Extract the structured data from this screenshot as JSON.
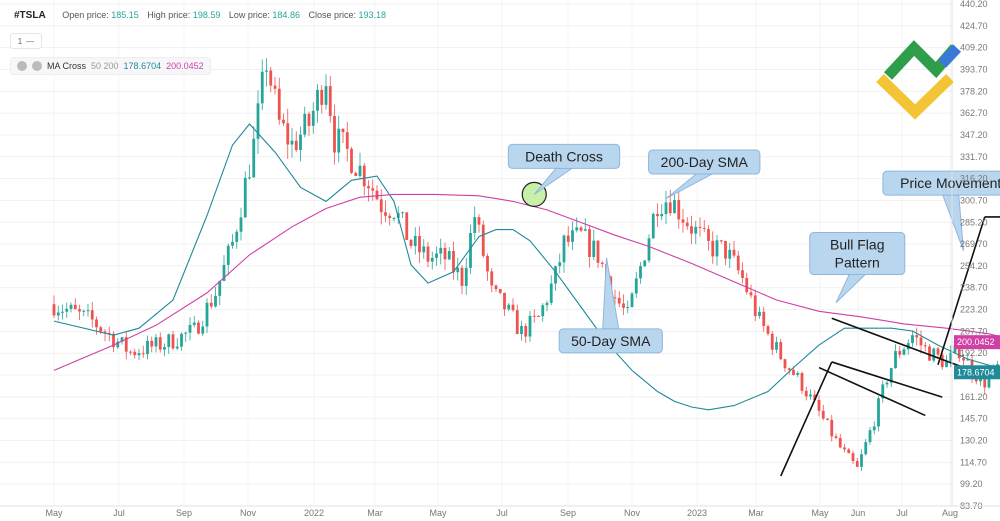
{
  "header": {
    "symbol": "#TSLA",
    "open_label": "Open price:",
    "open_value": "185.15",
    "high_label": "High price:",
    "high_value": "198.59",
    "low_label": "Low price:",
    "low_value": "184.86",
    "close_label": "Close price:",
    "close_value": "193.18"
  },
  "interval_box": {
    "value": "1",
    "dash": "—"
  },
  "indicator": {
    "name": "MA Cross",
    "periods": "50 200",
    "fast_value": "178.6704",
    "slow_value": "200.0452"
  },
  "colors": {
    "fast_ma": "#1f8a99",
    "slow_ma": "#d03fa5",
    "up": "#26a69a",
    "down": "#ef5350",
    "callout_fill": "#b9d6ef",
    "callout_border": "#8fb6dd"
  },
  "chart_data": {
    "type": "candlestick",
    "x_ticks": [
      "May",
      "Jul",
      "Sep",
      "Nov",
      "2022",
      "Mar",
      "May",
      "Jul",
      "Sep",
      "Nov",
      "2023",
      "Mar",
      "May",
      "Jun",
      "Jul",
      "Aug"
    ],
    "y_ticks": [
      440.2,
      424.7,
      409.2,
      393.7,
      378.2,
      362.7,
      347.2,
      331.7,
      316.2,
      300.7,
      285.2,
      269.7,
      254.2,
      238.7,
      223.2,
      207.7,
      192.2,
      176.7,
      161.2,
      145.7,
      130.2,
      114.7,
      99.2,
      83.7
    ],
    "y_tick_labels": [
      "440.20",
      "424.70",
      "409.20",
      "393.70",
      "378.20",
      "362.70",
      "347.20",
      "331.70",
      "316.20",
      "300.70",
      "285.20",
      "269.70",
      "254.20",
      "238.70",
      "223.20",
      "207.70",
      "192.20",
      "176.70",
      "161.20",
      "145.70",
      "130.20",
      "114.70",
      "99.20",
      "83.70"
    ],
    "ylim": [
      83.7,
      440.2
    ],
    "price_path": [
      [
        0,
        227
      ],
      [
        9,
        215
      ],
      [
        18,
        193
      ],
      [
        26,
        199
      ],
      [
        33,
        208
      ],
      [
        38,
        235
      ],
      [
        42,
        270
      ],
      [
        47,
        340
      ],
      [
        50,
        400
      ],
      [
        53,
        355
      ],
      [
        56,
        340
      ],
      [
        60,
        355
      ],
      [
        64,
        390
      ],
      [
        66,
        345
      ],
      [
        69,
        335
      ],
      [
        74,
        315
      ],
      [
        77,
        298
      ],
      [
        80,
        295
      ],
      [
        84,
        270
      ],
      [
        88,
        260
      ],
      [
        92,
        260
      ],
      [
        96,
        245
      ],
      [
        99,
        290
      ],
      [
        103,
        235
      ],
      [
        106,
        225
      ],
      [
        110,
        207
      ],
      [
        114,
        217
      ],
      [
        118,
        247
      ],
      [
        120,
        270
      ],
      [
        124,
        275
      ],
      [
        128,
        262
      ],
      [
        132,
        232
      ],
      [
        135,
        218
      ],
      [
        139,
        265
      ],
      [
        142,
        300
      ],
      [
        145,
        302
      ],
      [
        150,
        282
      ],
      [
        154,
        268
      ],
      [
        158,
        265
      ],
      [
        162,
        245
      ],
      [
        166,
        215
      ],
      [
        171,
        190
      ],
      [
        176,
        170
      ],
      [
        180,
        150
      ],
      [
        185,
        125
      ],
      [
        189,
        110
      ],
      [
        193,
        145
      ],
      [
        196,
        175
      ],
      [
        198,
        190
      ],
      [
        202,
        205
      ],
      [
        205,
        195
      ],
      [
        210,
        185
      ],
      [
        213,
        195
      ],
      [
        216,
        180
      ],
      [
        219,
        172
      ],
      [
        222,
        182
      ],
      [
        226,
        175
      ],
      [
        228,
        193
      ]
    ],
    "series": [
      {
        "name": "50-Day SMA",
        "values": [
          [
            0,
            215
          ],
          [
            14,
            205
          ],
          [
            20,
            210
          ],
          [
            28,
            230
          ],
          [
            36,
            290
          ],
          [
            42,
            340
          ],
          [
            46,
            355
          ],
          [
            52,
            335
          ],
          [
            58,
            310
          ],
          [
            64,
            300
          ],
          [
            70,
            315
          ],
          [
            76,
            318
          ],
          [
            80,
            300
          ],
          [
            84,
            255
          ],
          [
            88,
            242
          ],
          [
            94,
            250
          ],
          [
            100,
            275
          ],
          [
            104,
            280
          ],
          [
            108,
            280
          ],
          [
            112,
            272
          ],
          [
            118,
            250
          ],
          [
            124,
            225
          ],
          [
            130,
            200
          ],
          [
            136,
            180
          ],
          [
            142,
            165
          ],
          [
            146,
            158
          ],
          [
            150,
            154
          ],
          [
            154,
            152
          ],
          [
            160,
            155
          ],
          [
            168,
            165
          ],
          [
            174,
            182
          ],
          [
            180,
            198
          ],
          [
            186,
            210
          ],
          [
            192,
            210
          ],
          [
            197,
            210
          ],
          [
            202,
            208
          ],
          [
            208,
            198
          ],
          [
            215,
            188
          ],
          [
            222,
            182
          ],
          [
            228,
            178.67
          ]
        ]
      },
      {
        "name": "200-Day SMA",
        "values": [
          [
            0,
            180
          ],
          [
            14,
            198
          ],
          [
            24,
            212
          ],
          [
            36,
            235
          ],
          [
            46,
            262
          ],
          [
            56,
            282
          ],
          [
            64,
            295
          ],
          [
            72,
            303
          ],
          [
            80,
            305
          ],
          [
            90,
            305
          ],
          [
            100,
            304
          ],
          [
            108,
            300
          ],
          [
            116,
            294
          ],
          [
            124,
            285
          ],
          [
            132,
            276
          ],
          [
            140,
            268
          ],
          [
            150,
            256
          ],
          [
            160,
            243
          ],
          [
            170,
            230
          ],
          [
            180,
            222
          ],
          [
            190,
            218
          ],
          [
            200,
            213
          ],
          [
            210,
            210
          ],
          [
            220,
            206
          ],
          [
            228,
            200.05
          ]
        ]
      }
    ],
    "annotations": [
      {
        "text": "Death Cross",
        "anchor": [
          113,
          305
        ],
        "label_pos": [
          120,
          332
        ]
      },
      {
        "text": "200-Day SMA",
        "anchor": [
          144,
          302
        ],
        "label_pos": [
          153,
          328
        ]
      },
      {
        "text": "50-Day SMA",
        "anchor": [
          130,
          260
        ],
        "label_pos": [
          131,
          201
        ]
      },
      {
        "text": "Bull Flag Pattern",
        "anchor": [
          184,
          228
        ],
        "label_pos": [
          189,
          263
        ]
      },
      {
        "text": "Price Movement",
        "anchor": [
          214,
          265
        ],
        "label_pos": [
          211,
          313
        ]
      }
    ],
    "pattern_lines": [
      [
        [
          171,
          105
        ],
        [
          183,
          186
        ]
      ],
      [
        [
          183,
          186
        ],
        [
          209,
          161
        ]
      ],
      [
        [
          180,
          182
        ],
        [
          205,
          148
        ]
      ],
      [
        [
          183,
          217
        ],
        [
          215,
          181
        ]
      ],
      [
        [
          208,
          184
        ],
        [
          219,
          289
        ]
      ],
      [
        [
          219,
          289
        ],
        [
          238,
          289
        ]
      ]
    ],
    "price_tags": [
      {
        "value": 200.05,
        "label": "200.0452",
        "color": "#d03fa5"
      },
      {
        "value": 178.67,
        "label": "178.6704",
        "color": "#1f8a99"
      }
    ]
  }
}
